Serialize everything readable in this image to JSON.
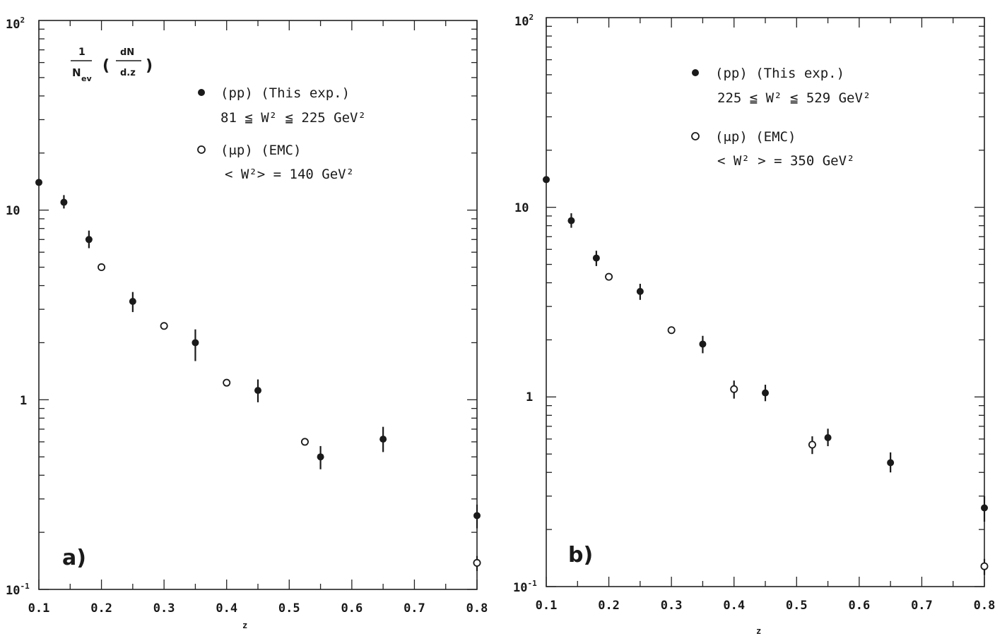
{
  "chart_data": [
    {
      "type": "scatter",
      "panel_label": "a)",
      "xlabel": "z",
      "ylabel": {
        "num": "1",
        "den": "N",
        "den_sub": "ev",
        "frac_num": "dN",
        "frac_den": "d.z"
      },
      "xlim": [
        0.1,
        0.8
      ],
      "ylim": [
        0.1,
        100
      ],
      "yscale": "log",
      "xticks": [
        "0.1",
        "0.2",
        "0.3",
        "0.4",
        "0.5",
        "0.6",
        "0.7",
        "0.8"
      ],
      "yticks": [
        {
          "base": "10",
          "exp": "-1"
        },
        {
          "base": "1",
          "exp": ""
        },
        {
          "base": "10",
          "exp": ""
        },
        {
          "base": "10",
          "exp": "2"
        }
      ],
      "series": [
        {
          "marker": "filled",
          "legend_line1": "(pp) (This  exp.)",
          "legend_line2": "81 ≦ W² ≦ 225 GeV²",
          "points": [
            {
              "x": 0.1,
              "y": 14,
              "lo": 14,
              "hi": 14
            },
            {
              "x": 0.14,
              "y": 11,
              "lo": 10.2,
              "hi": 12.0
            },
            {
              "x": 0.18,
              "y": 7.0,
              "lo": 6.3,
              "hi": 7.8
            },
            {
              "x": 0.25,
              "y": 3.3,
              "lo": 2.9,
              "hi": 3.7
            },
            {
              "x": 0.35,
              "y": 2.0,
              "lo": 1.6,
              "hi": 2.35
            },
            {
              "x": 0.45,
              "y": 1.12,
              "lo": 0.97,
              "hi": 1.28
            },
            {
              "x": 0.55,
              "y": 0.5,
              "lo": 0.43,
              "hi": 0.57
            },
            {
              "x": 0.65,
              "y": 0.62,
              "lo": 0.53,
              "hi": 0.72
            },
            {
              "x": 0.8,
              "y": 0.245,
              "lo": 0.21,
              "hi": 0.28
            }
          ]
        },
        {
          "marker": "open",
          "legend_line1": "(μp) (EMC)",
          "legend_line2": "< W²> = 140 GeV²",
          "points": [
            {
              "x": 0.2,
              "y": 5.0,
              "lo": 5.0,
              "hi": 5.0
            },
            {
              "x": 0.3,
              "y": 2.45,
              "lo": 2.45,
              "hi": 2.45
            },
            {
              "x": 0.4,
              "y": 1.23,
              "lo": 1.23,
              "hi": 1.23
            },
            {
              "x": 0.525,
              "y": 0.6,
              "lo": 0.6,
              "hi": 0.6
            },
            {
              "x": 0.8,
              "y": 0.138,
              "lo": 0.125,
              "hi": 0.15
            }
          ]
        }
      ]
    },
    {
      "type": "scatter",
      "panel_label": "b)",
      "xlabel": "z",
      "xlim": [
        0.1,
        0.8
      ],
      "ylim": [
        0.1,
        100
      ],
      "yscale": "log",
      "xticks": [
        "0.1",
        "0.2",
        "0.3",
        "0.4",
        "0.5",
        "0.6",
        "0.7",
        "0.8"
      ],
      "yticks": [
        {
          "base": "10",
          "exp": "-1"
        },
        {
          "base": "1",
          "exp": ""
        },
        {
          "base": "10",
          "exp": ""
        },
        {
          "base": "10",
          "exp": "2"
        }
      ],
      "series": [
        {
          "marker": "filled",
          "legend_line1": "(pp) (This  exp.)",
          "legend_line2": "225 ≦ W² ≦ 529 GeV²",
          "points": [
            {
              "x": 0.1,
              "y": 14,
              "lo": 14,
              "hi": 14
            },
            {
              "x": 0.14,
              "y": 8.5,
              "lo": 7.8,
              "hi": 9.3
            },
            {
              "x": 0.18,
              "y": 5.4,
              "lo": 4.9,
              "hi": 5.9
            },
            {
              "x": 0.25,
              "y": 3.6,
              "lo": 3.25,
              "hi": 3.95
            },
            {
              "x": 0.35,
              "y": 1.9,
              "lo": 1.7,
              "hi": 2.1
            },
            {
              "x": 0.45,
              "y": 1.05,
              "lo": 0.95,
              "hi": 1.16
            },
            {
              "x": 0.55,
              "y": 0.61,
              "lo": 0.55,
              "hi": 0.68
            },
            {
              "x": 0.65,
              "y": 0.45,
              "lo": 0.4,
              "hi": 0.51
            },
            {
              "x": 0.8,
              "y": 0.26,
              "lo": 0.22,
              "hi": 0.3
            }
          ]
        },
        {
          "marker": "open",
          "legend_line1": "(μp) (EMC)",
          "legend_line2": "< W² > =  350  GeV²",
          "points": [
            {
              "x": 0.2,
              "y": 4.3,
              "lo": 4.3,
              "hi": 4.3
            },
            {
              "x": 0.3,
              "y": 2.25,
              "lo": 2.25,
              "hi": 2.25
            },
            {
              "x": 0.4,
              "y": 1.1,
              "lo": 0.98,
              "hi": 1.22
            },
            {
              "x": 0.525,
              "y": 0.56,
              "lo": 0.5,
              "hi": 0.62
            },
            {
              "x": 0.8,
              "y": 0.128,
              "lo": 0.115,
              "hi": 0.14
            }
          ]
        }
      ]
    }
  ]
}
